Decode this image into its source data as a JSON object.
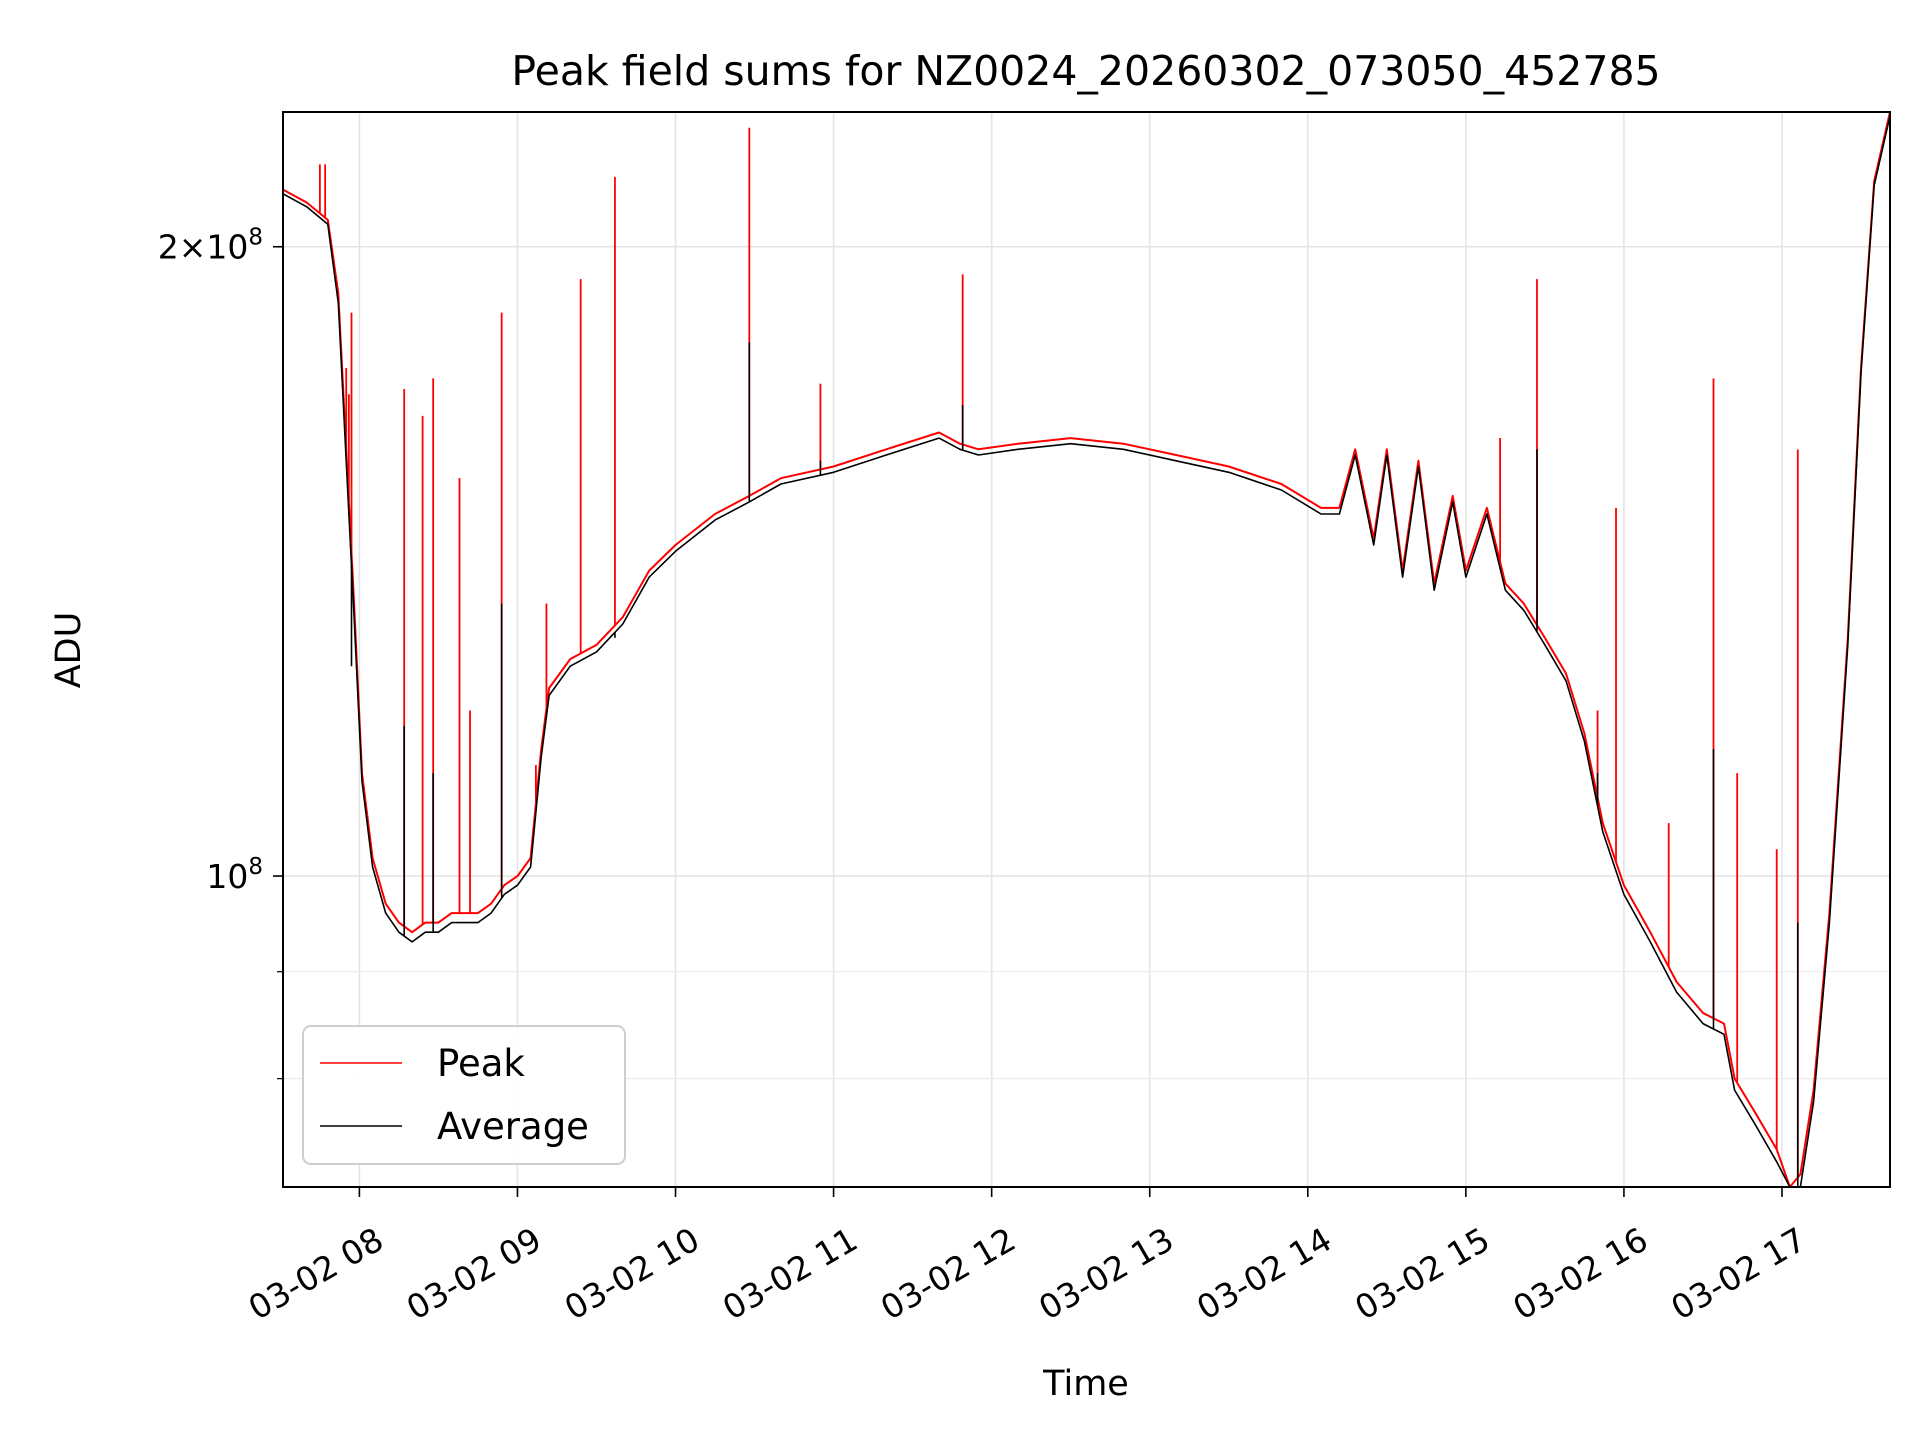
{
  "chart_data": {
    "type": "line",
    "title": "Peak field sums for NZ0024_20260302_073050_452785",
    "xlabel": "Time",
    "ylabel": "ADU",
    "y_scale": "log",
    "xlim": [
      "2026-03-02 07:31",
      "2026-03-02 17:41"
    ],
    "ylim": [
      71000000,
      232000000
    ],
    "x_ticks": [
      "03-02 08",
      "03-02 09",
      "03-02 10",
      "03-02 11",
      "03-02 12",
      "03-02 13",
      "03-02 14",
      "03-02 15",
      "03-02 16",
      "03-02 17"
    ],
    "y_major_ticks": [
      {
        "value": 100000000,
        "label": "10^8"
      },
      {
        "value": 200000000,
        "label": "2×10^8"
      }
    ],
    "y_minor_ticks": [
      70000000,
      80000000,
      90000000,
      300000000
    ],
    "grid": true,
    "legend_position": "lower-left",
    "series": [
      {
        "name": "Peak",
        "color": "#ff0000",
        "baseline": [
          [
            "07:31",
            213000000
          ],
          [
            "07:40",
            210000000
          ],
          [
            "07:48",
            206000000
          ],
          [
            "07:52",
            190000000
          ],
          [
            "07:55",
            160000000
          ],
          [
            "07:58",
            135000000
          ],
          [
            "08:01",
            112000000
          ],
          [
            "08:05",
            102000000
          ],
          [
            "08:10",
            97000000
          ],
          [
            "08:15",
            95000000
          ],
          [
            "08:20",
            94000000
          ],
          [
            "08:25",
            95000000
          ],
          [
            "08:30",
            95000000
          ],
          [
            "08:35",
            96000000
          ],
          [
            "08:40",
            96000000
          ],
          [
            "08:45",
            96000000
          ],
          [
            "08:50",
            97000000
          ],
          [
            "08:55",
            99000000
          ],
          [
            "09:00",
            100000000
          ],
          [
            "09:05",
            102000000
          ],
          [
            "09:09",
            115000000
          ],
          [
            "09:12",
            123000000
          ],
          [
            "09:20",
            127000000
          ],
          [
            "09:30",
            129000000
          ],
          [
            "09:40",
            133000000
          ],
          [
            "09:50",
            140000000
          ],
          [
            "10:00",
            144000000
          ],
          [
            "10:15",
            149000000
          ],
          [
            "10:28",
            152000000
          ],
          [
            "10:40",
            155000000
          ],
          [
            "11:00",
            157000000
          ],
          [
            "11:20",
            160000000
          ],
          [
            "11:40",
            163000000
          ],
          [
            "11:48",
            161000000
          ],
          [
            "11:55",
            160000000
          ],
          [
            "12:10",
            161000000
          ],
          [
            "12:30",
            162000000
          ],
          [
            "12:50",
            161000000
          ],
          [
            "13:10",
            159000000
          ],
          [
            "13:30",
            157000000
          ],
          [
            "13:50",
            154000000
          ],
          [
            "14:05",
            150000000
          ],
          [
            "14:12",
            150000000
          ],
          [
            "14:18",
            160000000
          ],
          [
            "14:25",
            145000000
          ],
          [
            "14:30",
            160000000
          ],
          [
            "14:36",
            140000000
          ],
          [
            "14:42",
            158000000
          ],
          [
            "14:48",
            138000000
          ],
          [
            "14:55",
            152000000
          ],
          [
            "15:00",
            140000000
          ],
          [
            "15:08",
            150000000
          ],
          [
            "15:15",
            138000000
          ],
          [
            "15:22",
            135000000
          ],
          [
            "15:30",
            130000000
          ],
          [
            "15:38",
            125000000
          ],
          [
            "15:45",
            117000000
          ],
          [
            "15:52",
            106000000
          ],
          [
            "16:00",
            99000000
          ],
          [
            "16:10",
            94000000
          ],
          [
            "16:20",
            89000000
          ],
          [
            "16:30",
            86000000
          ],
          [
            "16:38",
            85000000
          ],
          [
            "16:42",
            80000000
          ],
          [
            "16:50",
            77000000
          ],
          [
            "16:58",
            74000000
          ],
          [
            "17:03",
            71000000
          ],
          [
            "17:07",
            72000000
          ],
          [
            "17:12",
            79000000
          ],
          [
            "17:18",
            96000000
          ],
          [
            "17:25",
            130000000
          ],
          [
            "17:30",
            175000000
          ],
          [
            "17:35",
            215000000
          ],
          [
            "17:41",
            232000000
          ]
        ],
        "spikes": [
          [
            "07:45",
            219000000
          ],
          [
            "07:47",
            219000000
          ],
          [
            "07:55",
            175000000
          ],
          [
            "07:56",
            170000000
          ],
          [
            "07:57",
            186000000
          ],
          [
            "08:17",
            171000000
          ],
          [
            "08:24",
            166000000
          ],
          [
            "08:28",
            173000000
          ],
          [
            "08:38",
            155000000
          ],
          [
            "08:42",
            120000000
          ],
          [
            "08:54",
            186000000
          ],
          [
            "09:07",
            113000000
          ],
          [
            "09:11",
            135000000
          ],
          [
            "09:24",
            193000000
          ],
          [
            "09:37",
            216000000
          ],
          [
            "10:28",
            228000000
          ],
          [
            "10:55",
            172000000
          ],
          [
            "11:49",
            194000000
          ],
          [
            "15:13",
            162000000
          ],
          [
            "15:27",
            193000000
          ],
          [
            "15:50",
            120000000
          ],
          [
            "15:57",
            150000000
          ],
          [
            "16:17",
            106000000
          ],
          [
            "16:34",
            173000000
          ],
          [
            "16:43",
            112000000
          ],
          [
            "16:58",
            103000000
          ],
          [
            "17:06",
            160000000
          ]
        ]
      },
      {
        "name": "Average",
        "color": "#000000",
        "baseline": [
          [
            "07:31",
            212000000
          ],
          [
            "07:40",
            209000000
          ],
          [
            "07:48",
            205000000
          ],
          [
            "07:52",
            188000000
          ],
          [
            "07:55",
            158000000
          ],
          [
            "07:58",
            133000000
          ],
          [
            "08:01",
            111000000
          ],
          [
            "08:05",
            101000000
          ],
          [
            "08:10",
            96000000
          ],
          [
            "08:15",
            94000000
          ],
          [
            "08:20",
            93000000
          ],
          [
            "08:25",
            94000000
          ],
          [
            "08:30",
            94000000
          ],
          [
            "08:35",
            95000000
          ],
          [
            "08:40",
            95000000
          ],
          [
            "08:45",
            95000000
          ],
          [
            "08:50",
            96000000
          ],
          [
            "08:55",
            98000000
          ],
          [
            "09:00",
            99000000
          ],
          [
            "09:05",
            101000000
          ],
          [
            "09:09",
            114000000
          ],
          [
            "09:12",
            122000000
          ],
          [
            "09:20",
            126000000
          ],
          [
            "09:30",
            128000000
          ],
          [
            "09:40",
            132000000
          ],
          [
            "09:50",
            139000000
          ],
          [
            "10:00",
            143000000
          ],
          [
            "10:15",
            148000000
          ],
          [
            "10:28",
            151000000
          ],
          [
            "10:40",
            154000000
          ],
          [
            "11:00",
            156000000
          ],
          [
            "11:20",
            159000000
          ],
          [
            "11:40",
            162000000
          ],
          [
            "11:48",
            160000000
          ],
          [
            "11:55",
            159000000
          ],
          [
            "12:10",
            160000000
          ],
          [
            "12:30",
            161000000
          ],
          [
            "12:50",
            160000000
          ],
          [
            "13:10",
            158000000
          ],
          [
            "13:30",
            156000000
          ],
          [
            "13:50",
            153000000
          ],
          [
            "14:05",
            149000000
          ],
          [
            "14:12",
            149000000
          ],
          [
            "14:18",
            159000000
          ],
          [
            "14:25",
            144000000
          ],
          [
            "14:30",
            159000000
          ],
          [
            "14:36",
            139000000
          ],
          [
            "14:42",
            157000000
          ],
          [
            "14:48",
            137000000
          ],
          [
            "14:55",
            151000000
          ],
          [
            "15:00",
            139000000
          ],
          [
            "15:08",
            149000000
          ],
          [
            "15:15",
            137000000
          ],
          [
            "15:22",
            134000000
          ],
          [
            "15:30",
            129000000
          ],
          [
            "15:38",
            124000000
          ],
          [
            "15:45",
            116000000
          ],
          [
            "15:52",
            105000000
          ],
          [
            "16:00",
            98000000
          ],
          [
            "16:10",
            93000000
          ],
          [
            "16:20",
            88000000
          ],
          [
            "16:30",
            85000000
          ],
          [
            "16:38",
            84000000
          ],
          [
            "16:42",
            79000000
          ],
          [
            "16:50",
            76000000
          ],
          [
            "16:58",
            73000000
          ],
          [
            "17:03",
            71000000
          ],
          [
            "17:07",
            71000000
          ],
          [
            "17:12",
            78000000
          ],
          [
            "17:18",
            95000000
          ],
          [
            "17:25",
            129000000
          ],
          [
            "17:30",
            174000000
          ],
          [
            "17:35",
            214000000
          ],
          [
            "17:41",
            231000000
          ]
        ],
        "spikes": [
          [
            "07:57",
            126000000
          ],
          [
            "08:17",
            118000000
          ],
          [
            "08:28",
            112000000
          ],
          [
            "08:54",
            135000000
          ],
          [
            "09:37",
            130000000
          ],
          [
            "10:28",
            180000000
          ],
          [
            "10:55",
            158000000
          ],
          [
            "11:49",
            168000000
          ],
          [
            "15:27",
            160000000
          ],
          [
            "15:50",
            112000000
          ],
          [
            "16:34",
            115000000
          ],
          [
            "17:06",
            95000000
          ]
        ]
      }
    ]
  }
}
